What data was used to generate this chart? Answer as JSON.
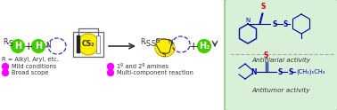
{
  "bg_color": "#ffffff",
  "green_box_color": "#d8f0d8",
  "green_box_edge": "#88cc88",
  "green_circle_color": "#44cc00",
  "magenta_circle_color": "#ff00ff",
  "dashed_circle_color": "#3333bb",
  "yellow_circle_color": "#ffee00",
  "arrow_color": "#444444",
  "red_s_color": "#cc0000",
  "blue_color": "#0000aa",
  "dark_text_color": "#333333",
  "label_r_alkyl": "R = Alkyl, Aryl, etc.",
  "bullet1a": "Mild conditions",
  "bullet1b": "1º and 2º amines",
  "bullet2a": "Broad scope",
  "bullet2b": "Multi-component reaction",
  "activity1": "Antifilarial activity",
  "activity2": "Antitumor activity",
  "cs2_label": "CS₂",
  "h2_label": "H₂"
}
